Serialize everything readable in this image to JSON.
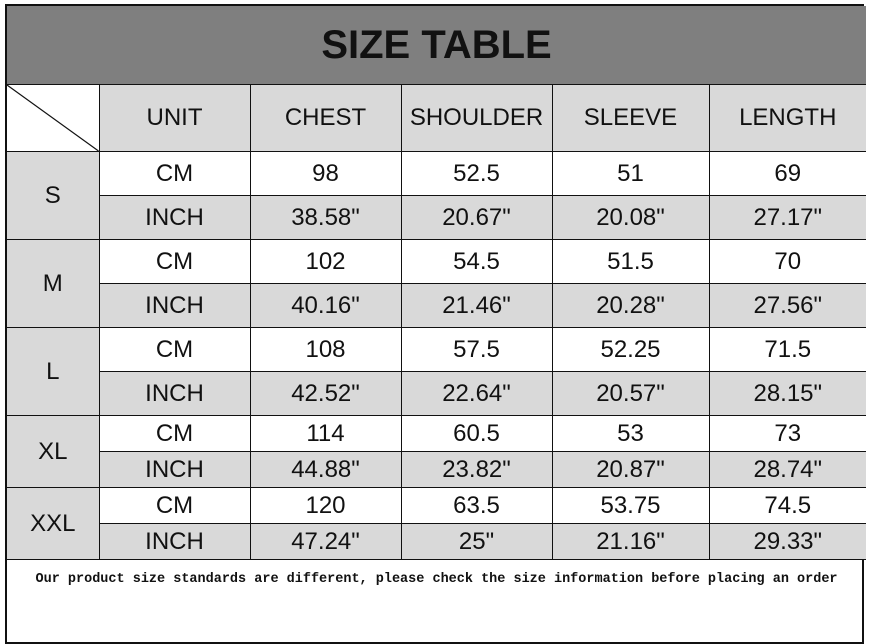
{
  "title": "SIZE TABLE",
  "headers": [
    "UNIT",
    "CHEST",
    "SHOULDER",
    "SLEEVE",
    "LENGTH"
  ],
  "sizes": [
    {
      "size": "S",
      "cm": [
        "CM",
        "98",
        "52.5",
        "51",
        "69"
      ],
      "inch": [
        "INCH",
        "38.58\"",
        "20.67\"",
        "20.08\"",
        "27.17\""
      ]
    },
    {
      "size": "M",
      "cm": [
        "CM",
        "102",
        "54.5",
        "51.5",
        "70"
      ],
      "inch": [
        "INCH",
        "40.16\"",
        "21.46\"",
        "20.28\"",
        "27.56\""
      ]
    },
    {
      "size": "L",
      "cm": [
        "CM",
        "108",
        "57.5",
        "52.25",
        "71.5"
      ],
      "inch": [
        "INCH",
        "42.52\"",
        "22.64\"",
        "20.57\"",
        "28.15\""
      ]
    },
    {
      "size": "XL",
      "cm": [
        "CM",
        "114",
        "60.5",
        "53",
        "73"
      ],
      "inch": [
        "INCH",
        "44.88\"",
        "23.82\"",
        "20.87\"",
        "28.74\""
      ]
    },
    {
      "size": "XXL",
      "cm": [
        "CM",
        "120",
        "63.5",
        "53.75",
        "74.5"
      ],
      "inch": [
        "INCH",
        "47.24\"",
        "25\"",
        "21.16\"",
        "29.33\""
      ]
    }
  ],
  "footer_note": "Our product size standards are different, please check the size information before placing an order",
  "colors": {
    "title_bg": "#7f7f7f",
    "header_bg": "#d9d9d9",
    "inch_row_bg": "#d9d9d9",
    "cm_row_bg": "#ffffff"
  }
}
